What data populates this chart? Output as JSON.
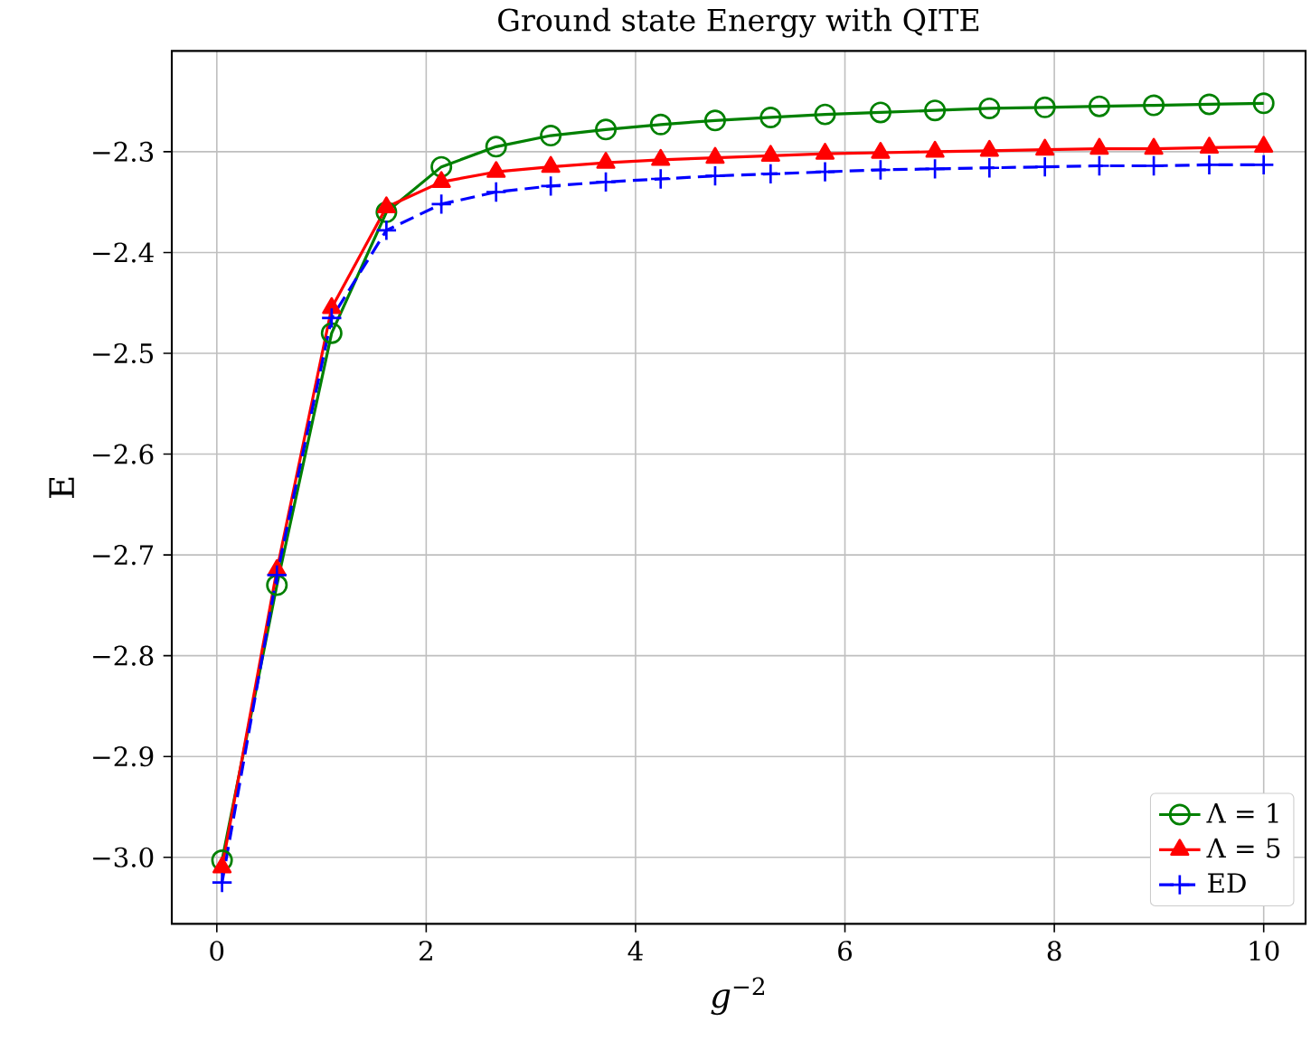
{
  "chart_data": {
    "type": "line",
    "title": "Ground state Energy with QITE",
    "xlabel": "*g*$^{−2}$",
    "ylabel": "E",
    "x": [
      0.05,
      0.574,
      1.097,
      1.62,
      2.145,
      2.668,
      3.19,
      3.716,
      4.24,
      4.76,
      5.29,
      5.81,
      6.34,
      6.86,
      7.38,
      7.91,
      8.43,
      8.95,
      9.48,
      10
    ],
    "series": [
      {
        "name": "Λ = 1",
        "color": "#008000",
        "marker": "circle",
        "line_style": "solid",
        "values": [
          -3.003,
          -2.73,
          -2.48,
          -2.36,
          -2.315,
          -2.295,
          -2.284,
          -2.278,
          -2.273,
          -2.269,
          -2.266,
          -2.263,
          -2.261,
          -2.259,
          -2.257,
          -2.256,
          -2.255,
          -2.254,
          -2.253,
          -2.252
        ]
      },
      {
        "name": "Λ = 5",
        "color": "#ff0000",
        "marker": "triangle",
        "line_style": "solid",
        "values": [
          -3.01,
          -2.715,
          -2.455,
          -2.355,
          -2.33,
          -2.32,
          -2.315,
          -2.311,
          -2.308,
          -2.306,
          -2.304,
          -2.302,
          -2.301,
          -2.3,
          -2.299,
          -2.298,
          -2.297,
          -2.297,
          -2.296,
          -2.295
        ]
      },
      {
        "name": "ED",
        "color": "#0000ff",
        "marker": "cross",
        "line_style": "dashed",
        "values": [
          -3.025,
          -2.72,
          -2.465,
          -2.378,
          -2.352,
          -2.34,
          -2.334,
          -2.33,
          -2.327,
          -2.324,
          -2.322,
          -2.32,
          -2.318,
          -2.317,
          -2.316,
          -2.315,
          -2.314,
          -2.314,
          -2.313,
          -2.313
        ]
      }
    ],
    "xlim": [
      -0.43,
      10.4
    ],
    "ylim": [
      -3.066,
      -2.2
    ],
    "xticks": [
      0,
      2,
      4,
      6,
      8,
      10
    ],
    "yticks": [
      {
        "value": -3.0,
        "label": "−3.0"
      },
      {
        "value": -2.9,
        "label": "−2.9"
      },
      {
        "value": -2.8,
        "label": "−2.8"
      },
      {
        "value": -2.7,
        "label": "−2.7"
      },
      {
        "value": -2.6,
        "label": "−2.6"
      },
      {
        "value": -2.5,
        "label": "−2.5"
      },
      {
        "value": -2.4,
        "label": "−2.4"
      },
      {
        "value": -2.3,
        "label": "−2.3"
      }
    ],
    "grid": true,
    "legend": "bottom right"
  }
}
